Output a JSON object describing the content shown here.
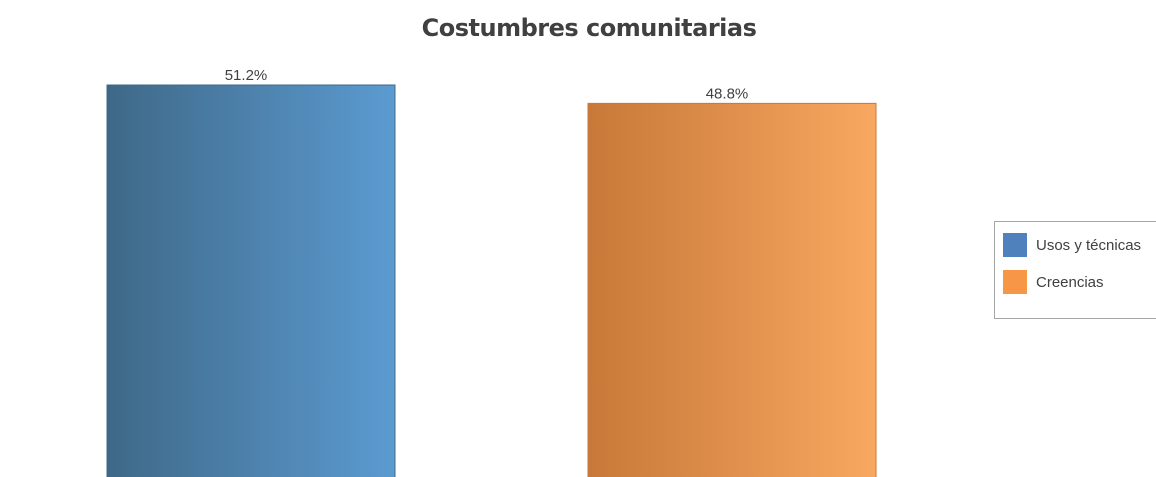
{
  "chart_data": {
    "type": "bar",
    "title": "Costumbres comunitarias",
    "categories": [
      "Usos y técnicas",
      "Creencias"
    ],
    "values": [
      51.2,
      48.8
    ],
    "value_labels": [
      "51.2%",
      "48.8%"
    ],
    "unit": "%",
    "ylim": [
      0,
      51.2
    ],
    "grid": false,
    "legend_position": "right",
    "series_colors": [
      "#4f81bd",
      "#f79646"
    ],
    "bar_gradients": [
      [
        "#3f6887",
        "#5b9bd1"
      ],
      [
        "#c87838",
        "#f8a860"
      ]
    ],
    "legend": [
      {
        "label": "Usos y técnicas",
        "color": "#4f81bd"
      },
      {
        "label": "Creencias",
        "color": "#f79646"
      }
    ]
  }
}
